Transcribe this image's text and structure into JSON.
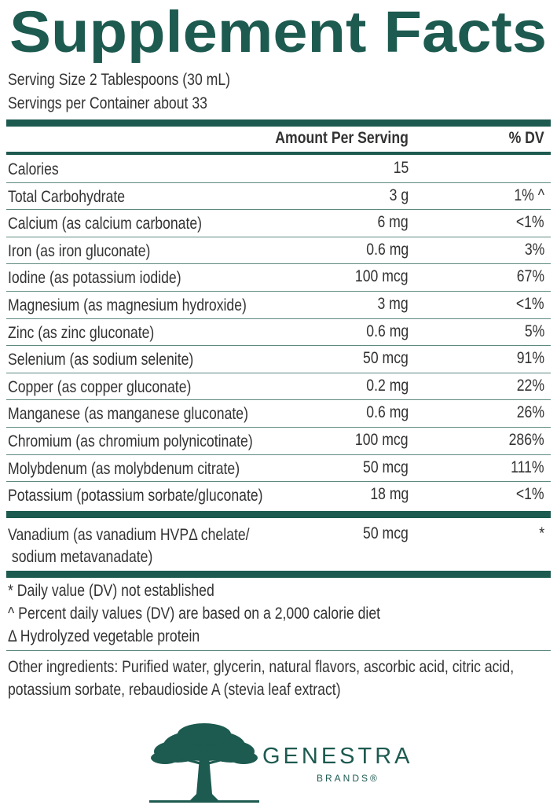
{
  "title": "Supplement Facts",
  "serving_size": "Serving Size 2 Tablespoons (30 mL)",
  "servings_per_container": "Servings per Container about 33",
  "table": {
    "header": [
      "Amount Per Serving",
      "% DV"
    ],
    "rows": [
      [
        "Calories",
        "15"
      ],
      [
        "Total Carbohydrate",
        "3 g",
        "1% ^"
      ],
      [
        "Calcium (as calcium carbonate)",
        "6 mg",
        "<1%"
      ],
      [
        "Iron (as iron gluconate)",
        "0.6 mg",
        "3%"
      ],
      [
        "Iodine (as potassium iodide)",
        "100 mcg",
        "67%"
      ],
      [
        "Magnesium (as magnesium hydroxide)",
        "3 mg",
        "<1%"
      ],
      [
        "Zinc (as zinc gluconate)",
        "0.6 mg",
        "5%"
      ],
      [
        "Selenium (as sodium selenite)",
        "50 mcg",
        "91%"
      ],
      [
        "Copper (as copper gluconate)",
        "0.2 mg",
        "22%"
      ],
      [
        "Manganese (as manganese gluconate)",
        "0.6 mg",
        "26%"
      ],
      [
        "Chromium (as chromium polynicotinate)",
        "100 mcg",
        "286%"
      ],
      [
        "Molybdenum (as molybdenum citrate)",
        "50 mcg",
        "111%"
      ],
      [
        "Potassium (potassium sorbate/gluconate)",
        "18 mg",
        "<1%"
      ],
      [
        "Vanadium (as vanadium HVPΔ chelate/\n sodium metavanadate)",
        "50 mcg",
        "*"
      ]
    ]
  },
  "footnotes": [
    "* Daily value (DV) not established",
    "^ Percent daily values (DV) are based on a 2,000 calorie diet",
    "Δ Hydrolyzed vegetable protein"
  ],
  "other_ingredients": "Other ingredients: Purified water, glycerin, natural flavors, ascorbic acid, citric acid, potassium sorbate, rebaudioside A (stevia leaf extract)",
  "logo": {
    "name": "GENESTRA",
    "sub": "BRANDS®"
  }
}
